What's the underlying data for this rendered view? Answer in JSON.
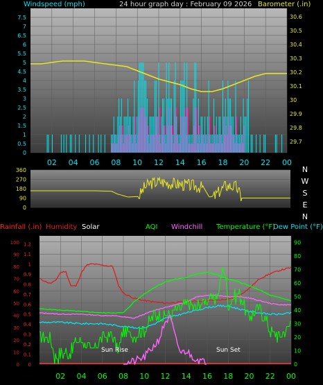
{
  "page": {
    "background": "#000000"
  },
  "chart_data": [
    {
      "id": "wind-baro",
      "type": "line",
      "title": "24 hour graph day : February 09 2026",
      "left_label": "Windspeed (mph)",
      "right_label": "Barometer (.in)",
      "left_ticks": [
        "0",
        "0.5",
        "1",
        "1.5",
        "2",
        "2.5",
        "3",
        "3.5",
        "4",
        "4.5",
        "5",
        "5.5",
        "6",
        "6.5",
        "7",
        "7.5"
      ],
      "right_ticks": [
        "29.7",
        "29.8",
        "29.9",
        "30",
        "30.1",
        "30.2",
        "30.3",
        "30.4",
        "30.5",
        "30.6"
      ],
      "x_ticks": [
        "02",
        "04",
        "06",
        "08",
        "10",
        "12",
        "14",
        "16",
        "18",
        "20",
        "22",
        "00"
      ],
      "ylim_left": [
        0,
        8
      ],
      "ylim_right": [
        29.62,
        30.66
      ],
      "colors": {
        "windspeed": "#00e5ee",
        "gust": "#ff1493",
        "barometer": "#e8e81e",
        "background_top": "#b4b4b4",
        "background_bottom": "#3c3c3c"
      },
      "series": [
        {
          "name": "Barometer",
          "axis": "right",
          "x": [
            0,
            1,
            2,
            3,
            4,
            5,
            6,
            7,
            8,
            9,
            10,
            11,
            12,
            13,
            14,
            15,
            16,
            17,
            18,
            19,
            20,
            21,
            22,
            23,
            24
          ],
          "y": [
            30.26,
            30.26,
            30.27,
            30.28,
            30.28,
            30.28,
            30.27,
            30.26,
            30.25,
            30.24,
            30.21,
            30.18,
            30.15,
            30.13,
            30.11,
            30.08,
            30.06,
            30.06,
            30.08,
            30.11,
            30.14,
            30.17,
            30.19,
            30.19,
            30.19
          ]
        }
      ]
    },
    {
      "id": "wind-direction",
      "type": "line",
      "left_ticks": [
        "0",
        "90",
        "180",
        "270",
        "360"
      ],
      "right_labels": [
        "N",
        "W",
        "S",
        "E",
        "N"
      ],
      "ylim": [
        0,
        360
      ],
      "colors": {
        "direction": "#e8e81e"
      },
      "series": [
        {
          "name": "Wind direction",
          "x": [
            0,
            6,
            7.5,
            8,
            9,
            10,
            10.5,
            11,
            12,
            13,
            14,
            15,
            16,
            16.5,
            17,
            18,
            19,
            19.5,
            20,
            22,
            24
          ],
          "y": [
            160,
            160,
            155,
            130,
            100,
            105,
            190,
            230,
            250,
            230,
            220,
            210,
            190,
            100,
            110,
            210,
            200,
            90,
            90,
            90,
            90
          ]
        }
      ]
    },
    {
      "id": "temp-humidity",
      "type": "line",
      "legend": [
        "Rainfall (.in)",
        "Humidity",
        "Solar",
        "AQI",
        "Windchill",
        "Temperature (°F)",
        "Dew Point (°F)"
      ],
      "rain_ticks": [
        "0",
        "0.1",
        "0.2",
        "0.3",
        "0.4",
        "0.5",
        "0.6",
        "0.7",
        "0.8",
        "0.9",
        "1",
        "1.1",
        "1.2"
      ],
      "humidity_ticks": [
        "0",
        "10",
        "20",
        "30",
        "40",
        "50",
        "60",
        "70",
        "80",
        "90",
        "100"
      ],
      "temp_ticks": [
        "0",
        "10",
        "20",
        "30",
        "40",
        "50",
        "60",
        "70",
        "80",
        "90"
      ],
      "annotations": [
        "Sun Rise",
        "Sun Set"
      ],
      "colors": {
        "rainfall": "#ff0000",
        "humidity": "#dc1e1e",
        "solar": "#ffffff",
        "aqi": "#00ff00",
        "windchill": "#ff66ff",
        "temperature": "#00ff00",
        "dewpoint": "#00e5ee",
        "rain_line": "#ff3030"
      },
      "series": [
        {
          "name": "Humidity",
          "axis": "humidity",
          "x": [
            0,
            1,
            1.5,
            2,
            2.5,
            3,
            3.5,
            4,
            4.5,
            5,
            6,
            7,
            7.5,
            8,
            9,
            10,
            12,
            14,
            16,
            18,
            19,
            20,
            21,
            22,
            23,
            24
          ],
          "y": [
            70,
            66,
            68,
            75,
            76,
            64,
            64,
            75,
            81,
            82,
            81,
            80,
            65,
            58,
            54,
            52,
            50,
            51,
            52,
            53,
            56,
            62,
            70,
            74,
            77,
            79
          ]
        },
        {
          "name": "Temperature (°F)",
          "axis": "temp",
          "x": [
            0,
            2,
            4,
            6,
            7,
            8,
            9,
            10,
            11,
            12,
            13,
            14,
            15,
            16,
            17,
            18,
            19,
            20,
            21,
            22,
            23,
            24
          ],
          "y": [
            41,
            40,
            39,
            38,
            38,
            38,
            46,
            52,
            57,
            61,
            63,
            64,
            67,
            68,
            66,
            63,
            61,
            58,
            55,
            51,
            49,
            47
          ]
        },
        {
          "name": "Dew Point (°F)",
          "axis": "temp",
          "x": [
            0,
            2,
            4,
            6,
            7,
            8,
            9,
            10,
            11,
            12,
            13,
            14,
            15,
            16,
            17,
            18,
            19,
            20,
            21,
            22,
            23,
            24
          ],
          "y": [
            31,
            31,
            30,
            30,
            29,
            28,
            27,
            27,
            30,
            34,
            36,
            38,
            40,
            42,
            43,
            43,
            41,
            39,
            38,
            37,
            37,
            38
          ]
        },
        {
          "name": "Windchill",
          "axis": "temp",
          "x": [
            0,
            2,
            4,
            6,
            7,
            8,
            9,
            10,
            11,
            12,
            13,
            14,
            15,
            16,
            17,
            18,
            19,
            20,
            21,
            22,
            23,
            24
          ],
          "y": [
            38,
            37,
            37,
            36,
            36,
            35,
            34,
            37,
            40,
            42,
            44,
            46,
            50,
            51,
            51,
            50,
            50,
            49,
            47,
            45,
            44,
            44
          ]
        },
        {
          "name": "AQI",
          "axis": "temp",
          "x": [
            0,
            1,
            1.5,
            2,
            3,
            3.5,
            4,
            5,
            6,
            7,
            7.5,
            8,
            9,
            10,
            10.5,
            11,
            12,
            13,
            14,
            15,
            16,
            17,
            17.6,
            18,
            19,
            20,
            21,
            22,
            23,
            24
          ],
          "y": [
            20,
            19,
            4,
            8,
            8,
            18,
            19,
            8,
            20,
            22,
            10,
            24,
            22,
            26,
            30,
            37,
            35,
            40,
            45,
            42,
            48,
            50,
            75,
            45,
            52,
            35,
            42,
            25,
            20,
            30
          ]
        },
        {
          "name": "Solar",
          "axis": "temp",
          "x": [
            8,
            9,
            10,
            10.5,
            11,
            11.5,
            12,
            12.5,
            13,
            13.5,
            14,
            14.5,
            15,
            15.5,
            16
          ],
          "y": [
            0,
            2,
            5,
            10,
            14,
            20,
            32,
            34,
            18,
            8,
            10,
            6,
            4,
            2,
            0
          ]
        }
      ]
    }
  ]
}
